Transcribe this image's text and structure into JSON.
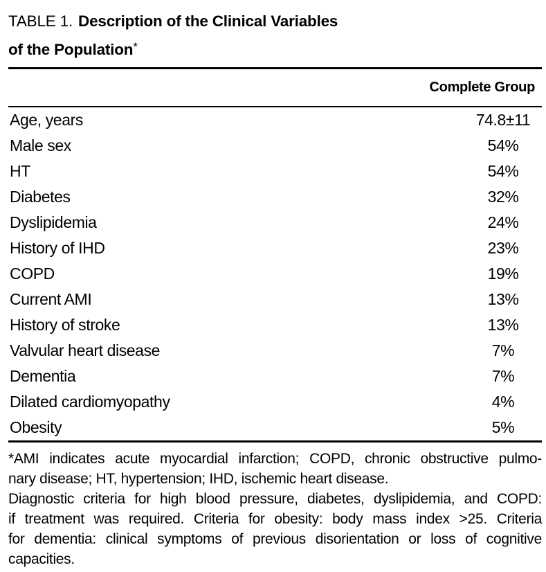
{
  "title": {
    "prefix": "TABLE 1.",
    "bold_line1": "Description of the Clinical Variables",
    "bold_line2": "of the Population",
    "footnote_marker": "*"
  },
  "header": {
    "value_column": "Complete Group"
  },
  "rows": [
    {
      "label": "Age, years",
      "value": "74.8±11"
    },
    {
      "label": "Male sex",
      "value": "54%"
    },
    {
      "label": "HT",
      "value": "54%"
    },
    {
      "label": "Diabetes",
      "value": "32%"
    },
    {
      "label": "Dyslipidemia",
      "value": "24%"
    },
    {
      "label": "History of IHD",
      "value": "23%"
    },
    {
      "label": "COPD",
      "value": "19%"
    },
    {
      "label": "Current AMI",
      "value": "13%"
    },
    {
      "label": "History of stroke",
      "value": "13%"
    },
    {
      "label": "Valvular heart disease",
      "value": "7%"
    },
    {
      "label": "Dementia",
      "value": "7%"
    },
    {
      "label": "Dilated cardiomyopathy",
      "value": "4%"
    },
    {
      "label": "Obesity",
      "value": "5%"
    }
  ],
  "footnote": {
    "lines": [
      "*AMI indicates acute myocardial infarction; COPD, chronic obstructive pulmo-",
      "nary disease; HT, hypertension; IHD, ischemic heart disease.",
      "Diagnostic criteria for high blood pressure, diabetes, dyslipidemia, and COPD:",
      "if treatment was required. Criteria for obesity: body mass index >25. Criteria",
      "for dementia: clinical symptoms of previous disorientation or loss of cognitive",
      "capacities."
    ]
  },
  "colors": {
    "text": "#000000",
    "background": "#ffffff",
    "rule": "#000000"
  }
}
